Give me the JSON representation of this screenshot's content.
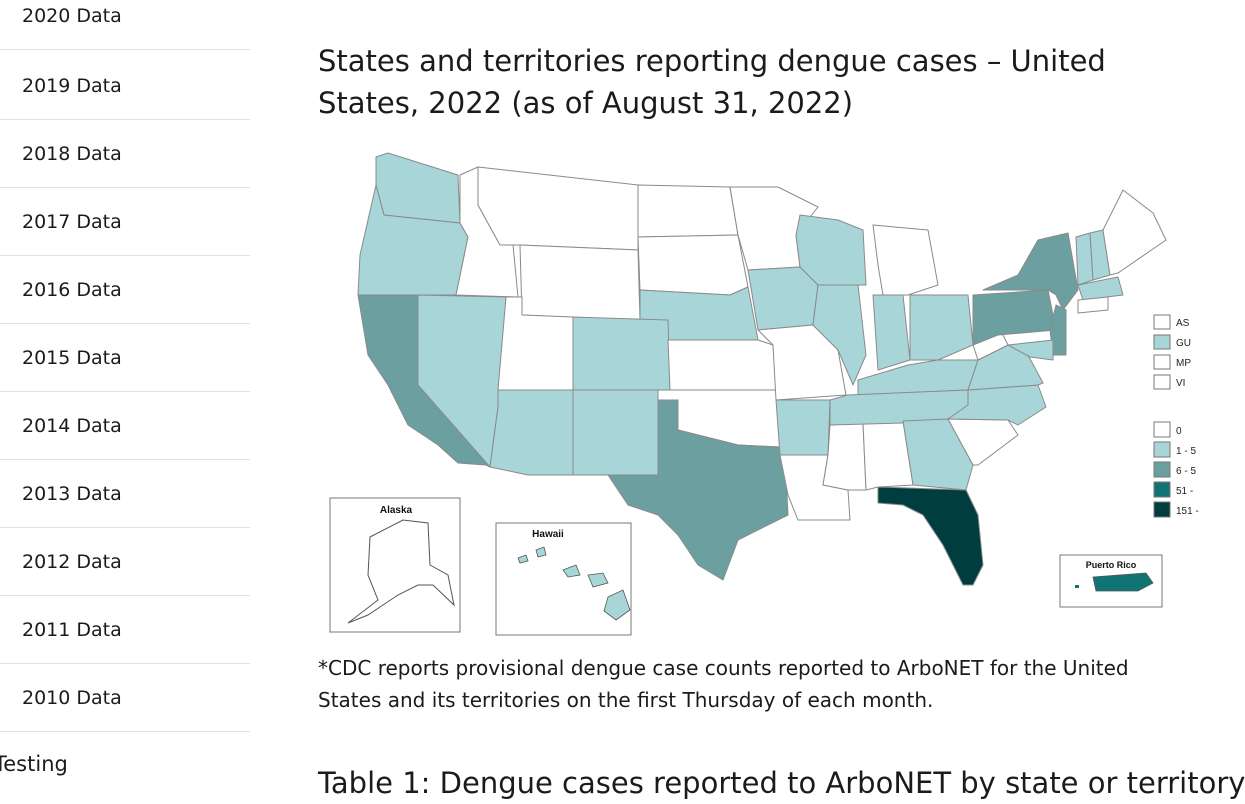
{
  "sidebar": {
    "items": [
      {
        "label": "2020 Data"
      },
      {
        "label": "2019 Data"
      },
      {
        "label": "2018 Data"
      },
      {
        "label": "2017 Data"
      },
      {
        "label": "2016 Data"
      },
      {
        "label": "2015 Data"
      },
      {
        "label": "2014 Data"
      },
      {
        "label": "2013 Data"
      },
      {
        "label": "2012 Data"
      },
      {
        "label": "2011 Data"
      },
      {
        "label": "2010 Data"
      }
    ],
    "next_section": "Testing"
  },
  "main": {
    "title": "States and territories reporting dengue cases – United States, 2022 (as of August 31, 2022)",
    "footnote_line1": "*CDC reports provisional dengue case counts reported to ArboNET for the United",
    "footnote_line2": "States and its territories on the first Thursday of each month.",
    "table_title": "Table 1: Dengue cases reported to ArboNET by state or territory"
  },
  "map": {
    "inset_alaska": "Alaska",
    "inset_hawaii": "Hawaii",
    "inset_puerto_rico": "Puerto Rico",
    "territory_legend": [
      "AS",
      "GU",
      "MP",
      "VI"
    ],
    "case_legend": [
      "0",
      "1 - 5",
      "6 - 5",
      "51 -",
      "151 -"
    ],
    "colors": {
      "zero": "#ffffff",
      "low": "#a8d5d8",
      "mid": "#6c9fa0",
      "high": "#107475",
      "highest": "#003d3f",
      "border": "#8a8a8a"
    }
  }
}
